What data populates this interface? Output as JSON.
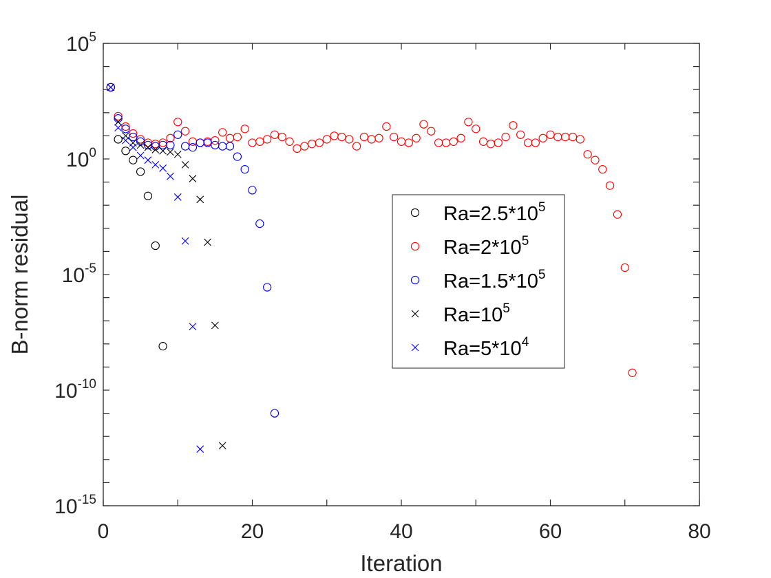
{
  "chart_data": {
    "type": "scatter",
    "title": "",
    "xlabel": "Iteration",
    "ylabel": "B-norm residual",
    "yscale": "log",
    "xlim": [
      0,
      80
    ],
    "ylim_exponent": [
      -15,
      5
    ],
    "x_ticks": [
      {
        "value": 0,
        "label": "0"
      },
      {
        "value": 20,
        "label": "20"
      },
      {
        "value": 40,
        "label": "40"
      },
      {
        "value": 60,
        "label": "60"
      },
      {
        "value": 80,
        "label": "80"
      }
    ],
    "y_ticks": [
      {
        "exp": 5,
        "base": "10",
        "power": "5"
      },
      {
        "exp": 0,
        "base": "10",
        "power": "0"
      },
      {
        "exp": -5,
        "base": "10",
        "power": "-5"
      },
      {
        "exp": -10,
        "base": "10",
        "power": "-10"
      },
      {
        "exp": -15,
        "base": "10",
        "power": "-15"
      }
    ],
    "legend_position": "center-right",
    "series": [
      {
        "name": "Ra=2.5*10^5",
        "label_base": "Ra=2.5*10",
        "label_power": "5",
        "marker": "circle",
        "color": "#000000",
        "x": [
          1,
          2,
          3,
          4,
          5,
          6,
          7,
          8
        ],
        "log10_y": [
          3.1,
          0.85,
          0.35,
          -0.05,
          -0.55,
          -1.6,
          -3.75,
          -8.1
        ]
      },
      {
        "name": "Ra=2*10^5",
        "label_base": "Ra=2*10",
        "label_power": "5",
        "marker": "circle",
        "color": "#ff0000",
        "x": [
          1,
          2,
          3,
          4,
          5,
          6,
          7,
          8,
          9,
          10,
          11,
          12,
          13,
          14,
          15,
          16,
          17,
          18,
          19,
          20,
          21,
          22,
          23,
          24,
          25,
          26,
          27,
          28,
          29,
          30,
          31,
          32,
          33,
          34,
          35,
          36,
          37,
          38,
          39,
          40,
          41,
          42,
          43,
          44,
          45,
          46,
          47,
          48,
          49,
          50,
          51,
          52,
          53,
          54,
          55,
          56,
          57,
          58,
          59,
          60,
          61,
          62,
          63,
          64,
          65,
          66,
          67,
          68,
          69,
          70,
          71
        ],
        "log10_y": [
          3.1,
          1.85,
          1.4,
          1.1,
          0.85,
          0.7,
          0.65,
          0.7,
          0.9,
          1.6,
          1.2,
          0.75,
          0.7,
          0.75,
          0.8,
          1.15,
          0.9,
          0.95,
          1.3,
          0.7,
          0.75,
          0.85,
          1.05,
          0.95,
          0.75,
          0.45,
          0.55,
          0.65,
          0.7,
          0.85,
          1.0,
          0.95,
          0.85,
          0.55,
          0.95,
          0.85,
          0.9,
          1.4,
          0.95,
          0.75,
          0.7,
          0.9,
          1.5,
          1.2,
          0.7,
          0.7,
          0.75,
          0.9,
          1.6,
          1.3,
          0.75,
          0.65,
          0.7,
          0.95,
          1.45,
          1.05,
          0.7,
          0.7,
          0.9,
          1.05,
          0.95,
          0.95,
          0.95,
          0.85,
          0.2,
          -0.05,
          -0.45,
          -1.15,
          -2.4,
          -4.7,
          -9.25
        ]
      },
      {
        "name": "Ra=1.5*10^5",
        "label_base": "Ra=1.5*10",
        "label_power": "5",
        "marker": "circle",
        "color": "#0000ff",
        "x": [
          1,
          2,
          3,
          4,
          5,
          6,
          7,
          8,
          9,
          10,
          11,
          12,
          13,
          14,
          15,
          16,
          17,
          18,
          19,
          20,
          21,
          22,
          23
        ],
        "log10_y": [
          3.1,
          1.75,
          1.3,
          0.95,
          0.75,
          0.6,
          0.55,
          0.6,
          0.6,
          1.05,
          0.55,
          0.5,
          0.7,
          0.7,
          0.6,
          0.55,
          0.55,
          0.1,
          -0.45,
          -1.35,
          -2.8,
          -5.55,
          -11.0
        ]
      },
      {
        "name": "Ra=10^5",
        "label_base": "Ra=10",
        "label_power": "5",
        "marker": "x",
        "color": "#000000",
        "x": [
          1,
          2,
          3,
          4,
          5,
          6,
          7,
          8,
          9,
          10,
          11,
          12,
          13,
          14,
          15,
          16
        ],
        "log10_y": [
          3.1,
          1.6,
          1.0,
          0.7,
          0.6,
          0.5,
          0.4,
          0.35,
          0.3,
          0.2,
          -0.25,
          -0.85,
          -1.75,
          -3.6,
          -7.2,
          -12.4
        ]
      },
      {
        "name": "Ra=5*10^4",
        "label_base": "Ra=5*10",
        "label_power": "4",
        "marker": "x",
        "color": "#0000ff",
        "x": [
          1,
          2,
          3,
          4,
          5,
          6,
          7,
          8,
          9,
          10,
          11,
          12,
          13
        ],
        "log10_y": [
          3.1,
          1.35,
          0.8,
          0.5,
          0.15,
          -0.05,
          -0.25,
          -0.4,
          -0.75,
          -1.65,
          -3.55,
          -7.25,
          -12.55
        ]
      }
    ]
  }
}
